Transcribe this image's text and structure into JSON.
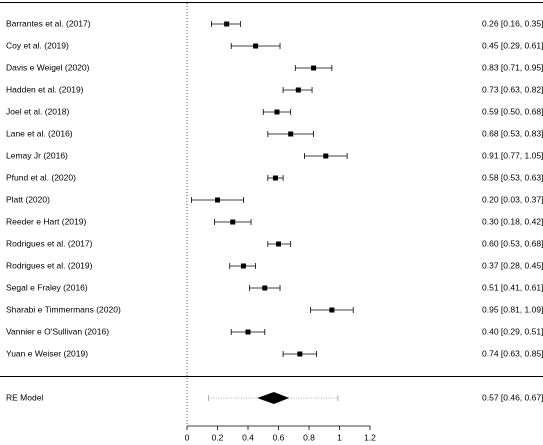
{
  "chart_data": {
    "type": "forest",
    "categories": [
      "Barrantes et al. (2017)",
      "Coy et al. (2019)",
      "Davis e Weigel (2020)",
      "Hadden et al. (2019)",
      "Joel et al. (2018)",
      "Lane et al. (2016)",
      "Lemay Jr (2016)",
      "Pfund et al. (2020)",
      "Platt (2020)",
      "Reeder e Hart (2019)",
      "Rodrigues et al. (2017)",
      "Rodrigues et al. (2019)",
      "Segal e Fraley (2016)",
      "Sharabi e Timmermans (2020)",
      "Vannier e O'Sullivan (2016)",
      "Yuan e Weiser (2019)"
    ],
    "values": [
      0.26,
      0.45,
      0.83,
      0.73,
      0.59,
      0.68,
      0.91,
      0.58,
      0.2,
      0.3,
      0.6,
      0.37,
      0.51,
      0.95,
      0.4,
      0.74
    ],
    "lower": [
      0.16,
      0.29,
      0.71,
      0.63,
      0.5,
      0.53,
      0.77,
      0.53,
      0.03,
      0.18,
      0.53,
      0.28,
      0.41,
      0.81,
      0.29,
      0.63
    ],
    "upper": [
      0.35,
      0.61,
      0.95,
      0.82,
      0.68,
      0.83,
      1.05,
      0.63,
      0.37,
      0.42,
      0.68,
      0.45,
      0.61,
      1.09,
      0.51,
      0.85
    ],
    "value_labels": [
      "0.26 [0.16, 0.35]",
      "0.45 [0.29, 0.61]",
      "0.83 [0.71, 0.95]",
      "0.73 [0.63, 0.82]",
      "0.59 [0.50, 0.68]",
      "0.68 [0.53, 0.83]",
      "0.91 [0.77, 1.05]",
      "0.58 [0.53, 0.63]",
      "0.20 [0.03, 0.37]",
      "0.30 [0.18, 0.42]",
      "0.60 [0.53, 0.68]",
      "0.37 [0.28, 0.45]",
      "0.51 [0.41, 0.61]",
      "0.95 [0.81, 1.09]",
      "0.40 [0.29, 0.51]",
      "0.74 [0.63, 0.85]"
    ],
    "summary": {
      "label": "RE Model",
      "value": 0.57,
      "lower": 0.46,
      "upper": 0.67,
      "value_label": "0.57 [0.46, 0.67]",
      "prediction_interval": [
        0.14,
        0.99
      ]
    },
    "reference_line": 0,
    "xlim": [
      0,
      1.2
    ],
    "xticks": [
      0,
      0.2,
      0.4,
      0.6,
      0.8,
      1,
      1.2
    ]
  }
}
